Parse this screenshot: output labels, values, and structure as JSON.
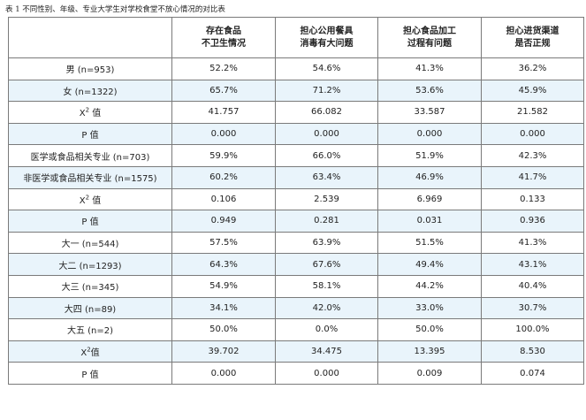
{
  "caption": "表 1   不同性别、年级、专业大学生对学校食堂不放心情况的对比表",
  "chi_square_symbol": "X",
  "chi_square_superscript": "2",
  "chart_data": {
    "type": "table",
    "columns": [
      {
        "line1": "存在食品",
        "line2": "不卫生情况"
      },
      {
        "line1": "担心公用餐具",
        "line2": "消毒有大问题"
      },
      {
        "line1": "担心食品加工",
        "line2": "过程有问题"
      },
      {
        "line1": "担心进货渠道",
        "line2": "是否正规"
      }
    ],
    "rows": [
      {
        "label": "男 (n=953)",
        "values": [
          "52.2%",
          "54.6%",
          "41.3%",
          "36.2%"
        ]
      },
      {
        "label": "女 (n=1322)",
        "values": [
          "65.7%",
          "71.2%",
          "53.6%",
          "45.9%"
        ]
      },
      {
        "label": " 值",
        "chi": true,
        "values": [
          "41.757",
          "66.082",
          "33.587",
          "21.582"
        ]
      },
      {
        "label": "P 值",
        "values": [
          "0.000",
          "0.000",
          "0.000",
          "0.000"
        ]
      },
      {
        "label": "医学或食品相关专业 (n=703)",
        "values": [
          "59.9%",
          "66.0%",
          "51.9%",
          "42.3%"
        ]
      },
      {
        "label": "非医学或食品相关专业 (n=1575)",
        "values": [
          "60.2%",
          "63.4%",
          "46.9%",
          "41.7%"
        ]
      },
      {
        "label": " 值",
        "chi": true,
        "values": [
          "0.106",
          "2.539",
          "6.969",
          "0.133"
        ]
      },
      {
        "label": "P 值",
        "values": [
          "0.949",
          "0.281",
          "0.031",
          "0.936"
        ]
      },
      {
        "label": "大一 (n=544)",
        "values": [
          "57.5%",
          "63.9%",
          "51.5%",
          "41.3%"
        ]
      },
      {
        "label": "大二 (n=1293)",
        "values": [
          "64.3%",
          "67.6%",
          "49.4%",
          "43.1%"
        ]
      },
      {
        "label": "大三 (n=345)",
        "values": [
          "54.9%",
          "58.1%",
          "44.2%",
          "40.4%"
        ]
      },
      {
        "label": "大四 (n=89)",
        "values": [
          "34.1%",
          "42.0%",
          "33.0%",
          "30.7%"
        ]
      },
      {
        "label": "大五 (n=2)",
        "values": [
          "50.0%",
          "0.0%",
          "50.0%",
          "100.0%"
        ]
      },
      {
        "label": "值",
        "chi": true,
        "values": [
          "39.702",
          "34.475",
          "13.395",
          "8.530"
        ]
      },
      {
        "label": "P 值",
        "values": [
          "0.000",
          "0.000",
          "0.009",
          "0.074"
        ]
      }
    ]
  },
  "colors": {
    "shaded_row": "#e9f4fb",
    "border": "#7a7a7a",
    "text": "#222222"
  }
}
